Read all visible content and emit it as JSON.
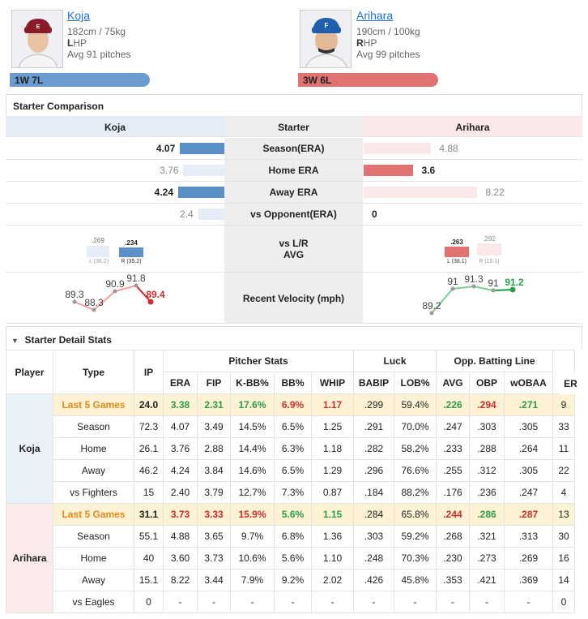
{
  "home": {
    "name": "Koja",
    "height_weight": "182cm / 75kg",
    "hand_letter": "L",
    "hand_rest": "HP",
    "avg_pitches": "Avg 91 pitches",
    "record": "1W 7L",
    "color": "#5b8fc7"
  },
  "away": {
    "name": "Arihara",
    "height_weight": "190cm / 100kg",
    "hand_letter": "R",
    "hand_rest": "HP",
    "avg_pitches": "Avg 99 pitches",
    "record": "3W 6L",
    "color": "#e07272"
  },
  "comparison": {
    "title": "Starter Comparison",
    "header": {
      "left": "Koja",
      "mid": "Starter",
      "right": "Arihara"
    },
    "rows": [
      {
        "label": "Season(ERA)",
        "left": "4.07",
        "right": "4.88",
        "left_bold": true,
        "right_bold": false
      },
      {
        "label": "Home ERA",
        "left": "3.76",
        "right": "3.6",
        "left_bold": false,
        "right_bold": true
      },
      {
        "label": "Away ERA",
        "left": "4.24",
        "right": "8.22",
        "left_bold": true,
        "right_bold": false
      },
      {
        "label": "vs Opponent(ERA)",
        "left": "2.4",
        "right": "0",
        "left_bold": false,
        "right_bold": true
      }
    ],
    "vs_lr": {
      "label1": "vs L/R",
      "label2": "AVG",
      "left": {
        "L": ".269",
        "L_note": "L (36.2)",
        "R": ".234",
        "R_note": "R (35.2)"
      },
      "right": {
        "L": ".263",
        "L_note": "L (38.1)",
        "R": ".292",
        "R_note": "R (16.1)"
      }
    },
    "velocity": {
      "label": "Recent Velocity (mph)",
      "left": [
        "89.3",
        "88.3",
        "90.9",
        "91.8",
        "89.4"
      ],
      "right": [
        "89.2",
        "91",
        "91.3",
        "91",
        "91.2"
      ]
    }
  },
  "detail": {
    "title": "Starter Detail Stats",
    "group_headers": {
      "pitcher": "Pitcher Stats",
      "luck": "Luck",
      "opp": "Opp. Batting Line"
    },
    "columns": [
      "Player",
      "Type",
      "IP",
      "ERA",
      "FIP",
      "K-BB%",
      "BB%",
      "WHIP",
      "BABIP",
      "LOB%",
      "AVG",
      "OBP",
      "wOBAA",
      "ER"
    ],
    "koja": [
      [
        "Last 5 Games",
        "24.0",
        "3.38",
        "2.31",
        "17.6%",
        "6.9%",
        "1.17",
        ".299",
        "59.4%",
        ".226",
        ".294",
        ".271",
        "9"
      ],
      [
        "Season",
        "72.3",
        "4.07",
        "3.49",
        "14.5%",
        "6.5%",
        "1.25",
        ".291",
        "70.0%",
        ".247",
        ".303",
        ".305",
        "33"
      ],
      [
        "Home",
        "26.1",
        "3.76",
        "2.88",
        "14.4%",
        "6.3%",
        "1.18",
        ".282",
        "58.2%",
        ".233",
        ".288",
        ".264",
        "11"
      ],
      [
        "Away",
        "46.2",
        "4.24",
        "3.84",
        "14.6%",
        "6.5%",
        "1.29",
        ".296",
        "76.6%",
        ".255",
        ".312",
        ".305",
        "22"
      ],
      [
        "vs Fighters",
        "15",
        "2.40",
        "3.79",
        "12.7%",
        "7.3%",
        "0.87",
        ".184",
        "88.2%",
        ".176",
        ".236",
        ".247",
        "4"
      ]
    ],
    "arihara": [
      [
        "Last 5 Games",
        "31.1",
        "3.73",
        "3.33",
        "15.9%",
        "5.6%",
        "1.15",
        ".284",
        "65.8%",
        ".244",
        ".286",
        ".287",
        "13"
      ],
      [
        "Season",
        "55.1",
        "4.88",
        "3.65",
        "9.7%",
        "6.8%",
        "1.36",
        ".303",
        "59.2%",
        ".268",
        ".321",
        ".313",
        "30"
      ],
      [
        "Home",
        "40",
        "3.60",
        "3.73",
        "10.6%",
        "5.6%",
        "1.10",
        ".248",
        "70.3%",
        ".230",
        ".273",
        ".269",
        "16"
      ],
      [
        "Away",
        "15.1",
        "8.22",
        "3.44",
        "7.9%",
        "9.2%",
        "2.02",
        ".426",
        "45.8%",
        ".353",
        ".421",
        ".369",
        "14"
      ],
      [
        "vs Eagles",
        "0",
        "-",
        "-",
        "-",
        "-",
        "-",
        "-",
        "-",
        "-",
        "-",
        "-",
        "0"
      ]
    ]
  }
}
